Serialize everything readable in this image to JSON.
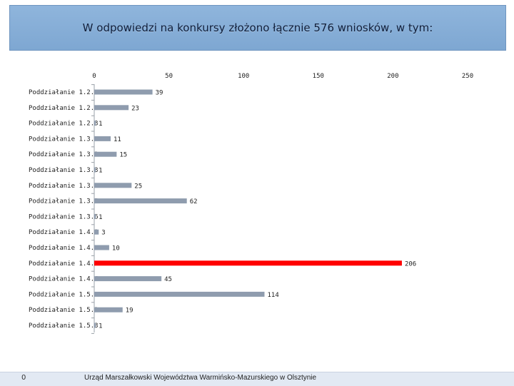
{
  "title": "W odpowiedzi na konkursy złożono łącznie 576 wniosków, w tym:",
  "footer": {
    "page_number": "0",
    "organization": "Urząd Marszałkowski Województwa Warmińsko-Mazurskiego w Olsztynie"
  },
  "colors": {
    "bar": "#8f9cae",
    "highlight": "#ff0000",
    "title_background": "#85acd6",
    "footer_background": "#e2e9f3"
  },
  "chart_data": {
    "type": "bar",
    "orientation": "horizontal",
    "categories": [
      "Poddziałanie 1.2.1",
      "Poddziałanie 1.2.2",
      "Poddziałanie 1.2.3",
      "Poddziałanie 1.3.1",
      "Poddziałanie 1.3.2",
      "Poddziałanie 1.3.3",
      "Poddziałanie 1.3.4",
      "Poddziałanie 1.3.5",
      "Poddziałanie 1.3.6",
      "Poddziałanie 1.4.1",
      "Poddziałanie 1.4.2",
      "Poddziałanie 1.4.3",
      "Poddziałanie 1.4.4",
      "Poddziałanie 1.5.1",
      "Poddziałanie 1.5.2",
      "Poddziałanie 1.5.3"
    ],
    "values": [
      39,
      23,
      1,
      11,
      15,
      1,
      25,
      62,
      1,
      3,
      10,
      206,
      45,
      114,
      19,
      1
    ],
    "highlighted_category": "Poddziałanie 1.4.3",
    "xlim": [
      0,
      250
    ],
    "xticks": [
      "0",
      "50",
      "100",
      "150",
      "200",
      "250"
    ],
    "xaxis_position": "top",
    "grid": false,
    "legend": "none"
  }
}
